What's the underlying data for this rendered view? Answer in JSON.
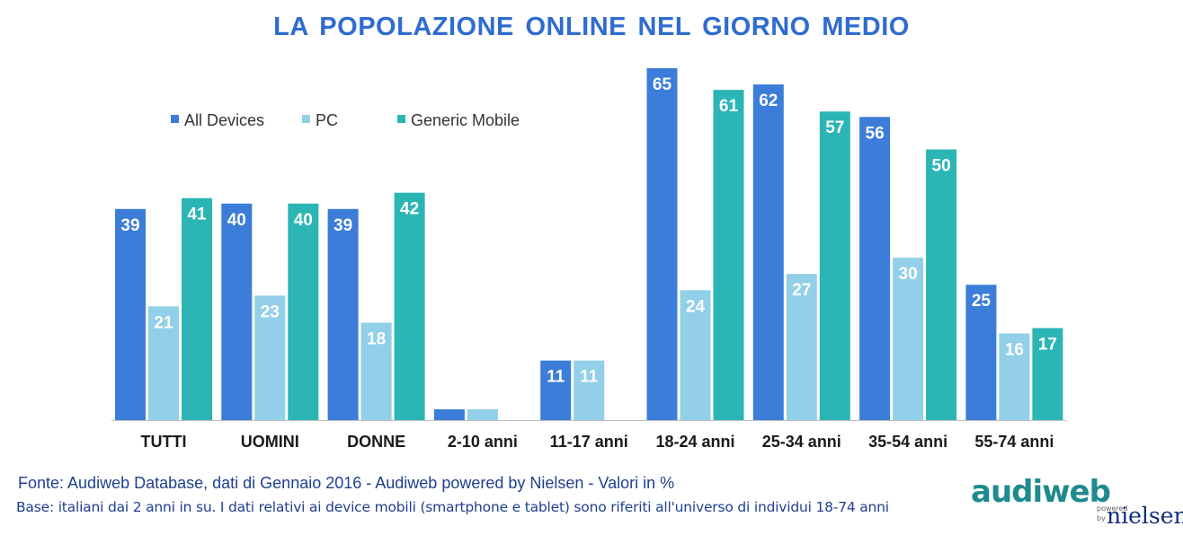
{
  "title": "LA POPOLAZIONE ONLINE NEL GIORNO MEDIO",
  "source_line": "Fonte: Audiweb Database, dati di Gennaio 2016 - Audiweb powered by Nielsen  - Valori in %",
  "base_line": "Base: italiani dai 2 anni in su. I dati relativi ai device mobili (smartphone e tablet) sono riferiti all'universo di individui 18-74 anni",
  "logo": {
    "brand": "audiweb",
    "powered": "powered",
    "by": "by",
    "partner": "nielsen"
  },
  "chart_data": {
    "type": "bar",
    "title": "LA POPOLAZIONE ONLINE NEL GIORNO MEDIO",
    "categories": [
      "TUTTI",
      "UOMINI",
      "DONNE",
      "2-10 anni",
      "11-17 anni",
      "18-24 anni",
      "25-34 anni",
      "35-54 anni",
      "55-74 anni"
    ],
    "series": [
      {
        "name": "All Devices",
        "color": "#3b7dd8",
        "values": [
          39,
          40,
          39,
          2,
          11,
          65,
          62,
          56,
          25
        ],
        "labels_shown": [
          true,
          true,
          true,
          false,
          true,
          true,
          true,
          true,
          true
        ]
      },
      {
        "name": "PC",
        "color": "#92cfe8",
        "values": [
          21,
          23,
          18,
          2,
          11,
          24,
          27,
          30,
          16
        ],
        "labels_shown": [
          true,
          true,
          true,
          false,
          true,
          true,
          true,
          true,
          true
        ]
      },
      {
        "name": "Generic Mobile",
        "color": "#2bb5b5",
        "values": [
          41,
          40,
          42,
          null,
          null,
          61,
          57,
          50,
          17
        ],
        "labels_shown": [
          true,
          true,
          true,
          false,
          false,
          true,
          true,
          true,
          true
        ]
      }
    ],
    "legend": "top-left",
    "grid": false,
    "ylim": [
      0,
      70
    ]
  }
}
